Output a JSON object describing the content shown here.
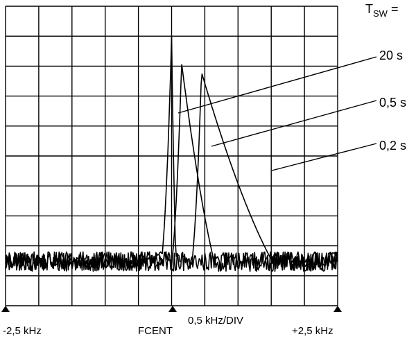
{
  "chart_data": {
    "type": "line",
    "title": "",
    "xlabel": "0,5 kHz/DIV",
    "ylabel": "",
    "x_unit": "kHz",
    "xlim": [
      -2.5,
      2.5
    ],
    "divisions": {
      "x": 10,
      "y": 10
    },
    "grid": true,
    "x_tick_labels": [
      {
        "x": -2.5,
        "label": "-2,5 kHz"
      },
      {
        "x": 0.0,
        "label": "FCENT"
      },
      {
        "x": 2.5,
        "label": "+2,5 kHz"
      }
    ],
    "legend_title": "T",
    "legend_title_sub": "SW",
    "legend_title_suffix": " =",
    "series": [
      {
        "name": "20 s",
        "sweep_time_s": 20,
        "peak_x": 0.0,
        "peak_level_div": 9.0
      },
      {
        "name": "0,5 s",
        "sweep_time_s": 0.5,
        "peak_x": 0.15,
        "peak_level_div": 8.1
      },
      {
        "name": "0,2 s",
        "sweep_time_s": 0.2,
        "peak_x": 0.45,
        "peak_level_div": 7.8
      }
    ],
    "noise_floor_div": [
      0.8,
      1.8
    ]
  }
}
